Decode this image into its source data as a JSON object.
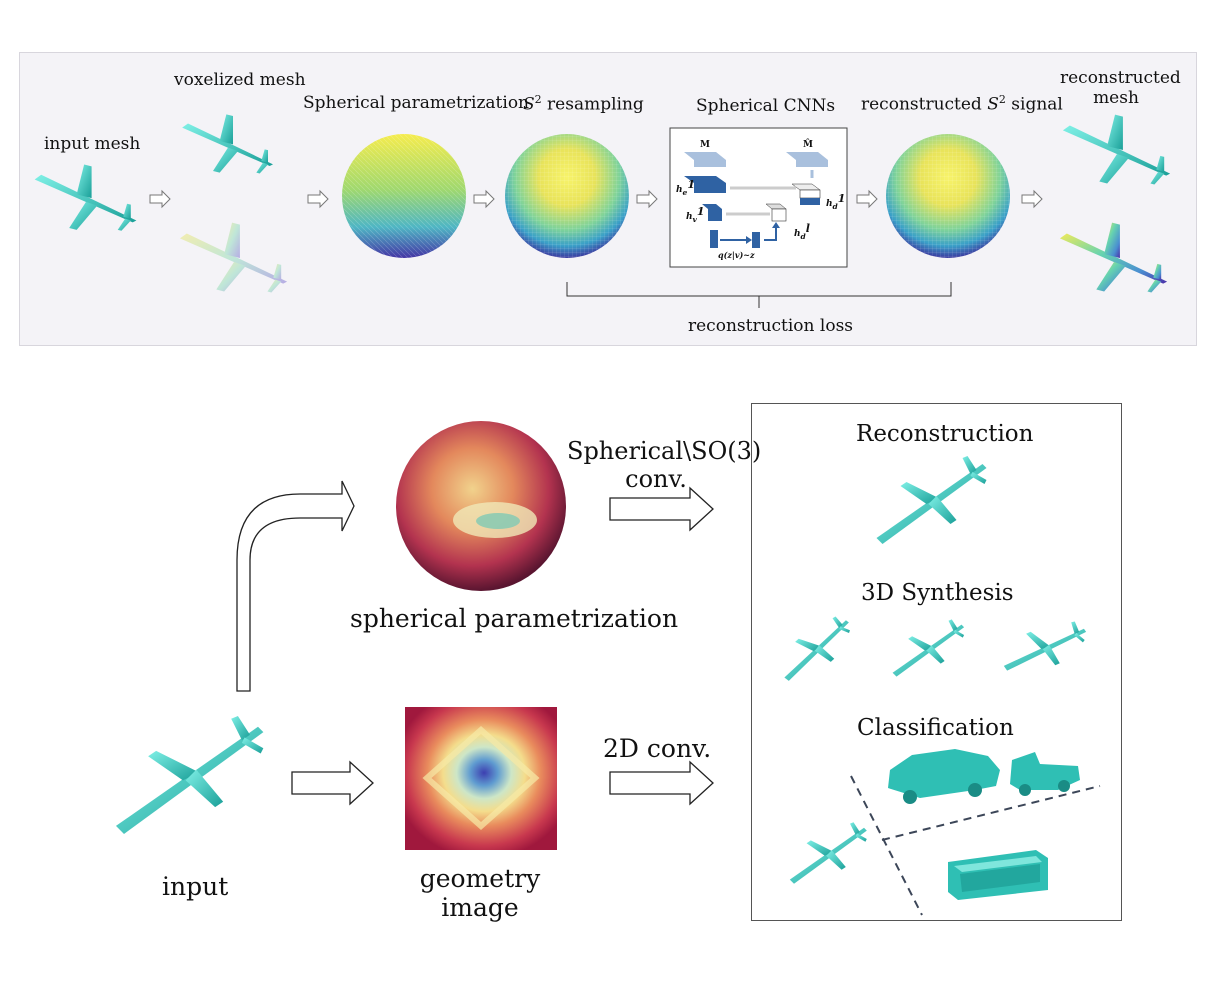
{
  "top": {
    "input_mesh": "input mesh",
    "voxelized_mesh": "voxelized mesh",
    "spherical_param": "Spherical parametrization",
    "s2_resampling_sym": "S",
    "s2_resampling_exp": "2",
    "s2_resampling_text": " resampling",
    "spherical_cnns": "Spherical CNNs",
    "recon_signal_prefix": "reconstructed ",
    "recon_signal_sym": "S",
    "recon_signal_exp": "2",
    "recon_signal_suffix": " signal",
    "recon_mesh_line1": "reconstructed",
    "recon_mesh_line2": "mesh",
    "recon_loss": "reconstruction loss",
    "cnn_box": {
      "m": "M",
      "m_hat": "M̂",
      "h1e": "h",
      "h1e_sub": "e",
      "h1e_sup": "1",
      "h1v": "h",
      "h1v_sub": "v",
      "h1v_sup": "1",
      "hld": "h",
      "hld_sub": "d",
      "hld_sup": "l",
      "h1d": "h",
      "h1d_sub": "d",
      "h1d_sup": "1",
      "q": "q(z|v)~z"
    }
  },
  "bottom": {
    "spherical_so3": "Spherical\\SO(3)",
    "conv": "conv.",
    "spherical_param": "spherical parametrization",
    "conv2d": "2D conv.",
    "input": "input",
    "geometry": "geometry",
    "image": "image",
    "reconstruction": "Reconstruction",
    "synthesis": "3D Synthesis",
    "classification": "Classification"
  },
  "colors": {
    "mesh": "#2fbfb4",
    "panel_bg": "#f4f3f7",
    "box_border": "#555555",
    "cnn_blue": "#2f62a3",
    "cnn_light": "#a9c0dd"
  }
}
